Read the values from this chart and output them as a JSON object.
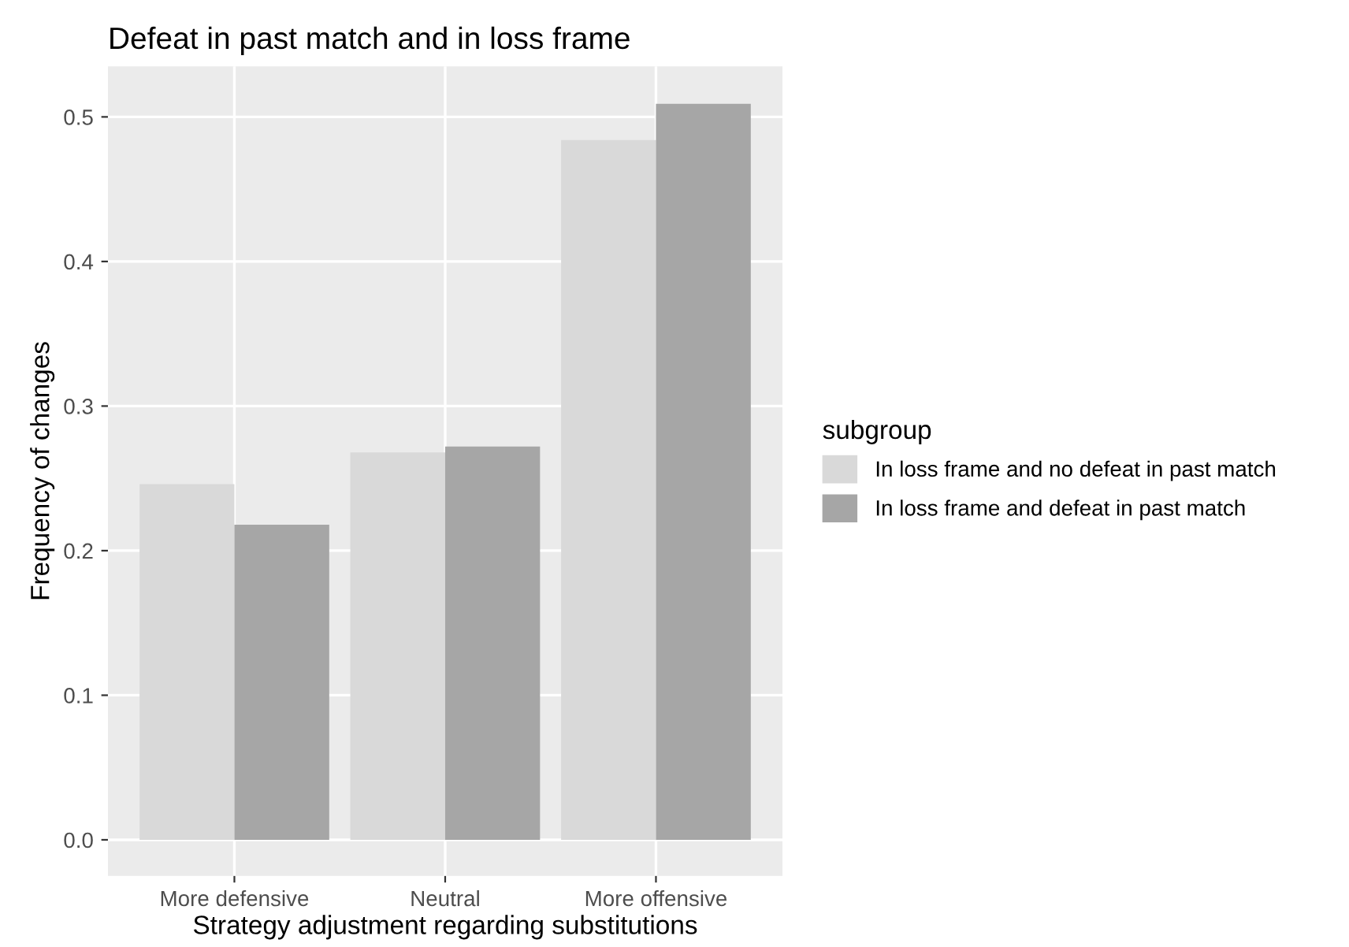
{
  "chart_data": {
    "type": "bar",
    "title": "Defeat in past match and in loss frame",
    "xlabel": "Strategy adjustment regarding substitutions",
    "ylabel": "Frequency of changes",
    "legend_title": "subgroup",
    "categories": [
      "More defensive",
      "Neutral",
      "More offensive"
    ],
    "series": [
      {
        "name": "In loss frame and no defeat in past match",
        "color": "#d9d9d9",
        "values": [
          0.246,
          0.268,
          0.484
        ]
      },
      {
        "name": "In loss frame and defeat in past match",
        "color": "#a6a6a6",
        "values": [
          0.218,
          0.272,
          0.509
        ]
      }
    ],
    "ylim": [
      -0.025,
      0.535
    ],
    "yticks": [
      {
        "value": 0,
        "label": "0.0"
      },
      0.1,
      0.2,
      0.3,
      0.4,
      0.5
    ],
    "grid": true,
    "legend": "right"
  }
}
